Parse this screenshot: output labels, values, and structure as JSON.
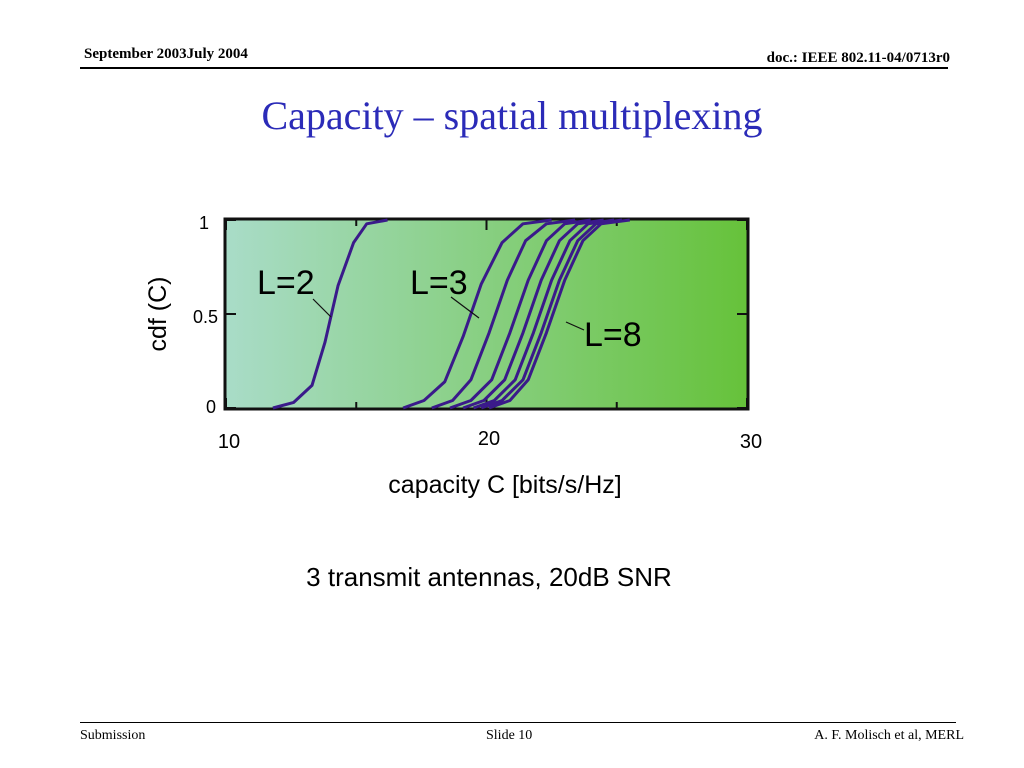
{
  "header": {
    "date": "September 2003July 2004",
    "doc": "doc.: IEEE 802.11-04/0713r0"
  },
  "slide_title": "Capacity – spatial multiplexing",
  "caption": "3 transmit antennas, 20dB SNR",
  "footer": {
    "left": "Submission",
    "slide": "Slide 10",
    "author": "A. F. Molisch et al, MERL"
  },
  "colors": {
    "title": "#2b2bb8",
    "curve": "#3a1a8a",
    "plot_gradient_start": "#a9dcc8",
    "plot_gradient_end": "#66c23a"
  },
  "chart_data": {
    "type": "line",
    "title": "",
    "xlabel": "capacity C [bits/s/Hz]",
    "ylabel": "cdf (C)",
    "xlim": [
      10,
      30
    ],
    "ylim": [
      0,
      1
    ],
    "xticks": [
      10,
      20,
      30
    ],
    "xtick_labels": [
      "10",
      "20",
      "30"
    ],
    "yticks": [
      0,
      0.5,
      1
    ],
    "ytick_labels": [
      "0",
      "0.5",
      "1"
    ],
    "grid": false,
    "series": [
      {
        "name": "L=2",
        "x": [
          11.8,
          12.6,
          13.3,
          13.8,
          14.3,
          14.9,
          15.4,
          16.2
        ],
        "y": [
          0,
          0.03,
          0.12,
          0.35,
          0.65,
          0.88,
          0.98,
          1
        ]
      },
      {
        "name": "",
        "x": [
          16.8,
          17.6,
          18.4,
          19.1,
          19.8,
          20.6,
          21.4,
          22.5
        ],
        "y": [
          0,
          0.04,
          0.14,
          0.38,
          0.66,
          0.88,
          0.98,
          1
        ]
      },
      {
        "name": "L=3",
        "x": [
          17.9,
          18.7,
          19.4,
          20.1,
          20.8,
          21.5,
          22.3,
          23.4
        ],
        "y": [
          0,
          0.04,
          0.15,
          0.4,
          0.68,
          0.89,
          0.98,
          1
        ]
      },
      {
        "name": "",
        "x": [
          18.6,
          19.4,
          20.2,
          20.9,
          21.6,
          22.3,
          23.0,
          24.0
        ],
        "y": [
          0,
          0.04,
          0.15,
          0.4,
          0.68,
          0.89,
          0.98,
          1
        ]
      },
      {
        "name": "",
        "x": [
          19.1,
          19.9,
          20.7,
          21.4,
          22.1,
          22.8,
          23.5,
          24.5
        ],
        "y": [
          0,
          0.04,
          0.15,
          0.4,
          0.68,
          0.89,
          0.98,
          1
        ]
      },
      {
        "name": "",
        "x": [
          19.5,
          20.3,
          21.1,
          21.8,
          22.5,
          23.2,
          23.9,
          24.9
        ],
        "y": [
          0,
          0.04,
          0.15,
          0.4,
          0.68,
          0.89,
          0.98,
          1
        ]
      },
      {
        "name": "",
        "x": [
          19.8,
          20.6,
          21.4,
          22.1,
          22.8,
          23.5,
          24.2,
          25.2
        ],
        "y": [
          0,
          0.04,
          0.15,
          0.4,
          0.68,
          0.89,
          0.98,
          1
        ]
      },
      {
        "name": "L=8",
        "x": [
          20.1,
          20.9,
          21.6,
          22.3,
          23.0,
          23.7,
          24.4,
          25.5
        ],
        "y": [
          0,
          0.04,
          0.15,
          0.4,
          0.68,
          0.89,
          0.98,
          1
        ]
      }
    ],
    "annotations": [
      {
        "text": "L=2",
        "points_to_series": 0
      },
      {
        "text": "L=3",
        "points_to_series": 2
      },
      {
        "text": "L=8",
        "points_to_series": 7
      }
    ]
  }
}
